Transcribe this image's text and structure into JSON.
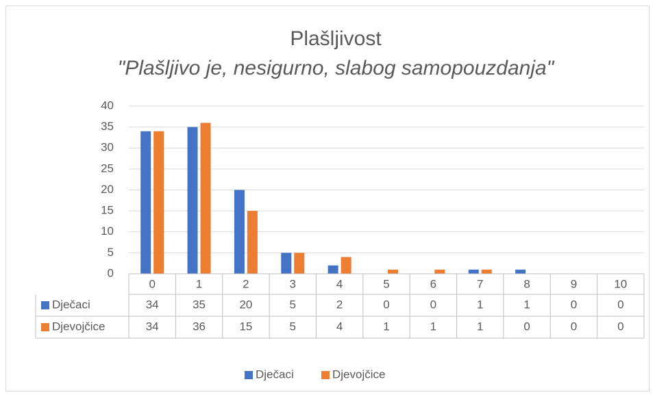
{
  "chart_data": {
    "type": "bar",
    "title": "Plašljivost",
    "subtitle": "\"Plašljivo je, nesigurno, slabog samopouzdanja\"",
    "categories": [
      "0",
      "1",
      "2",
      "3",
      "4",
      "5",
      "6",
      "7",
      "8",
      "9",
      "10"
    ],
    "series": [
      {
        "name": "Dječaci",
        "color": "#4472c4",
        "values": [
          34,
          35,
          20,
          5,
          2,
          0,
          0,
          1,
          1,
          0,
          0
        ]
      },
      {
        "name": "Djevojčice",
        "color": "#ed7d31",
        "values": [
          34,
          36,
          15,
          5,
          4,
          1,
          1,
          1,
          0,
          0,
          0
        ]
      }
    ],
    "ylim": [
      0,
      40
    ],
    "yticks": [
      0,
      5,
      10,
      15,
      20,
      25,
      30,
      35,
      40
    ],
    "grid": true,
    "legend": "bottom",
    "data_table": true
  }
}
